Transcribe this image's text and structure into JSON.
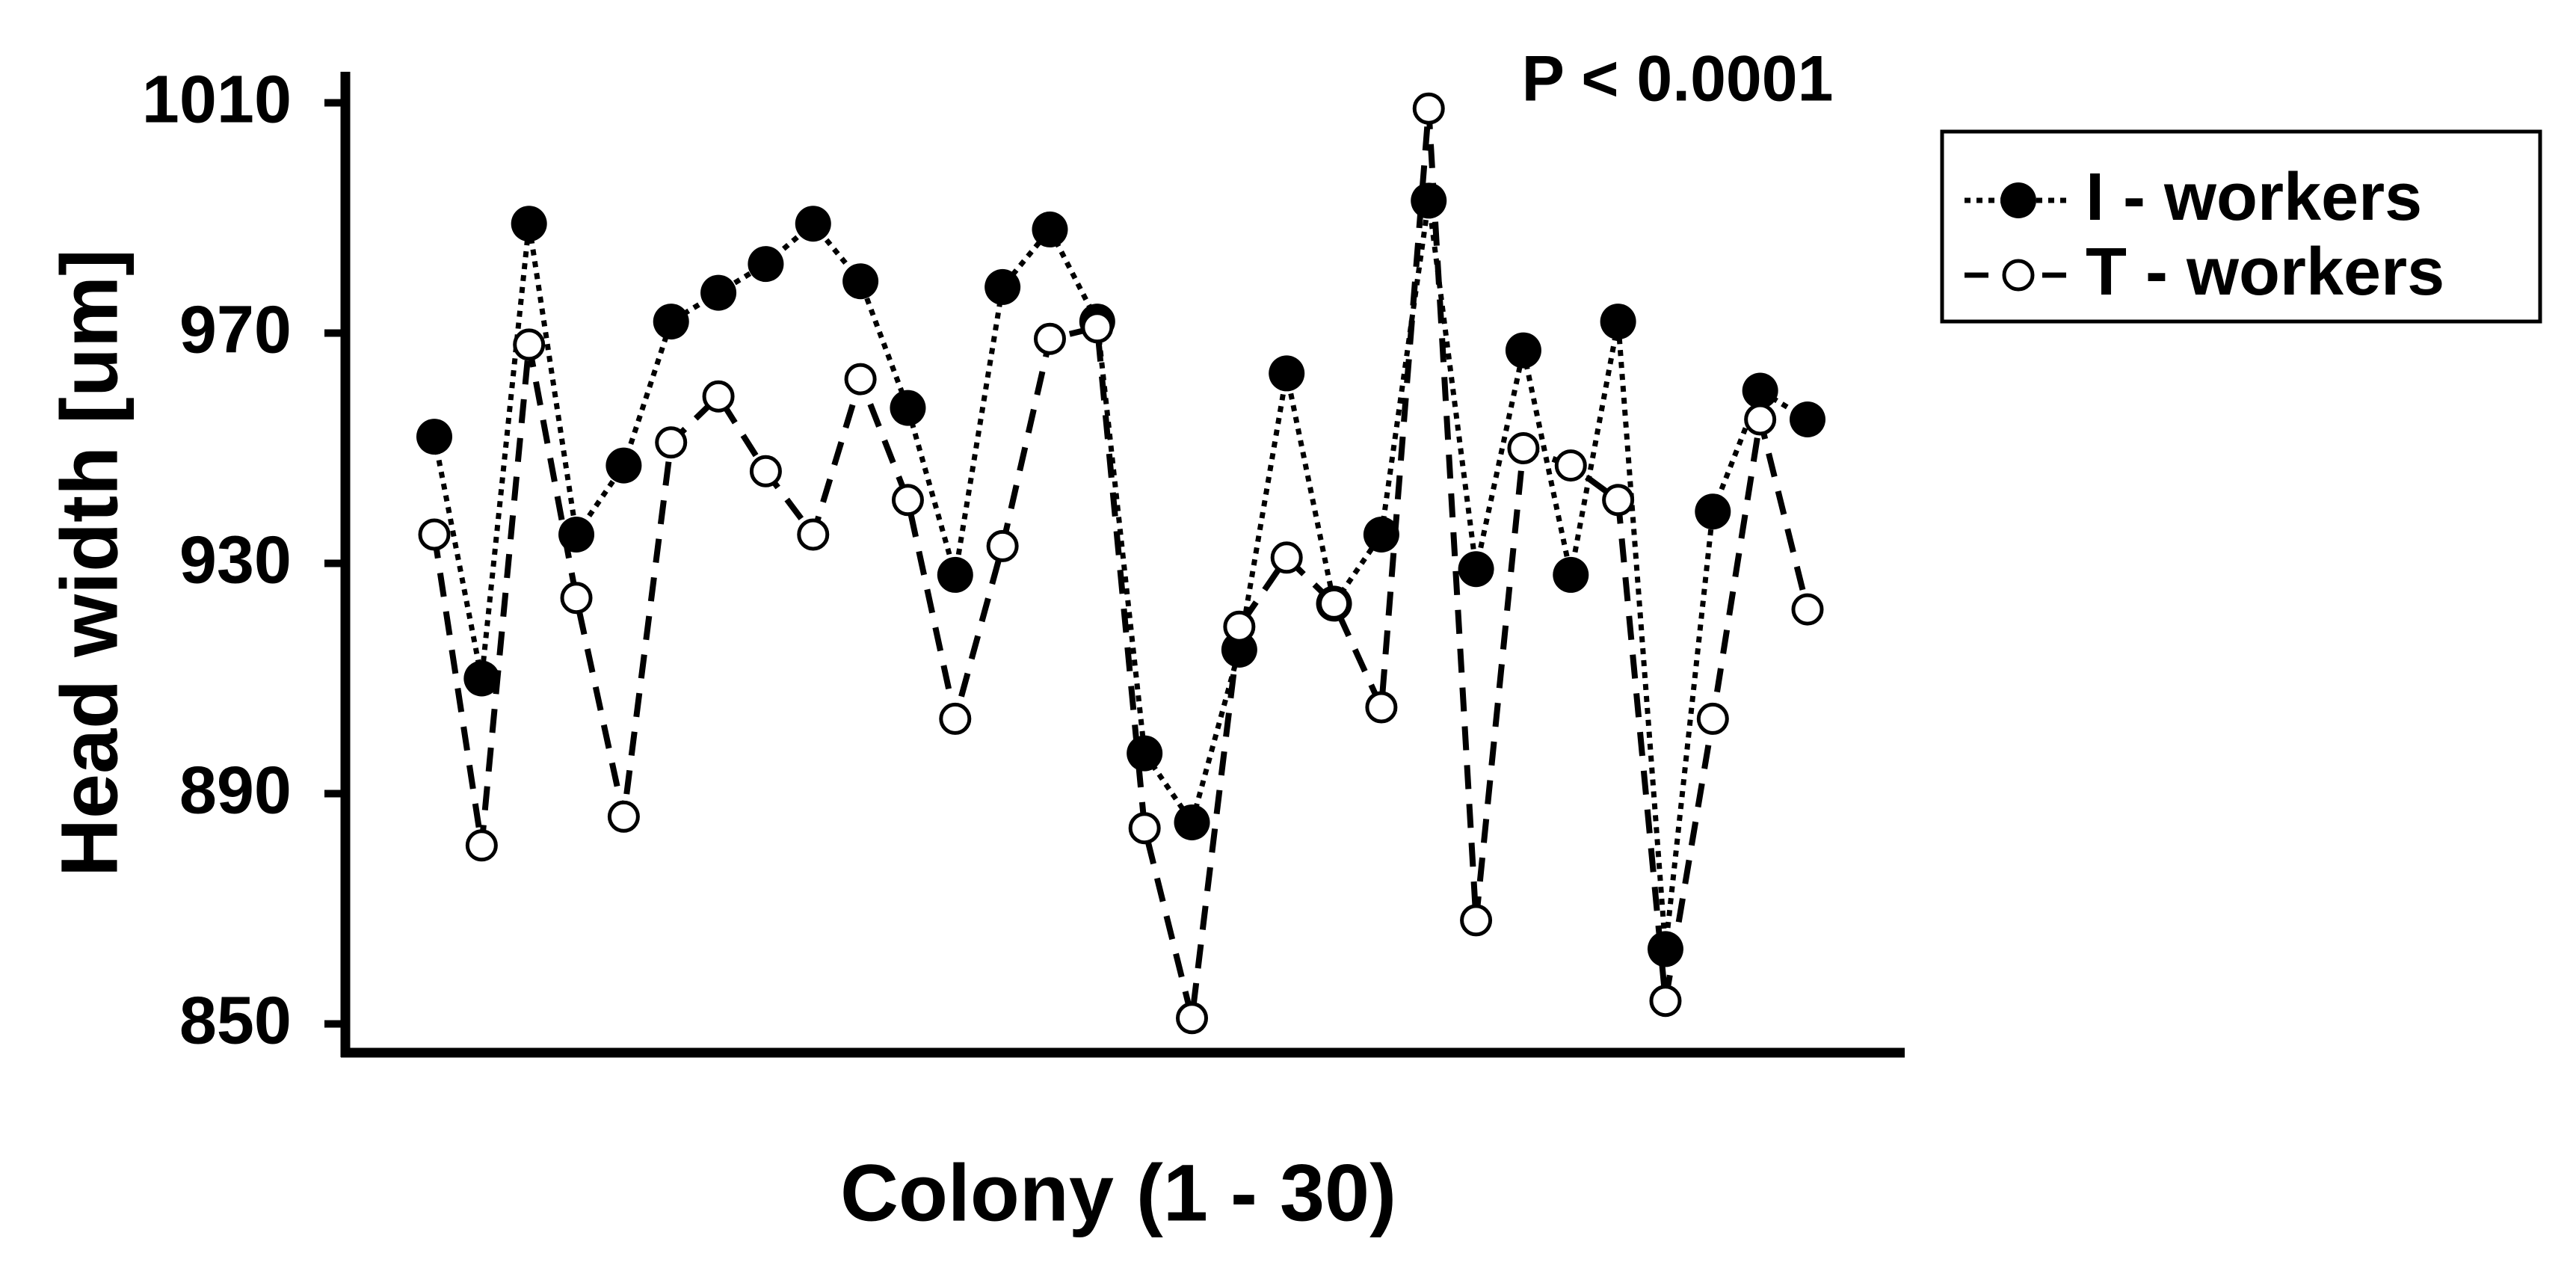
{
  "chart_data": {
    "type": "line",
    "annotation": "P < 0.0001",
    "x_label": "Colony (1 - 30)",
    "y_label": "Head width [um]",
    "categories": [
      null,
      null,
      null,
      null,
      null,
      null,
      null,
      null,
      null,
      null,
      null,
      null,
      null,
      null,
      null,
      null,
      null,
      null,
      null,
      null,
      null,
      null,
      null,
      null,
      null,
      null,
      null,
      null,
      null,
      null
    ],
    "series": [
      {
        "name": "I - workers",
        "color": "#000000",
        "marker": "filled",
        "line": "dotted",
        "values": [
          952,
          910,
          989,
          935,
          947,
          972,
          977,
          982,
          989,
          979,
          957,
          928,
          978,
          988,
          972,
          897,
          885,
          915,
          963,
          923,
          935,
          993,
          929,
          967,
          928,
          972,
          863,
          939,
          960,
          955
        ]
      },
      {
        "name": "T - workers",
        "color": "#000000",
        "marker": "open",
        "line": "dashed",
        "values": [
          935,
          881,
          968,
          924,
          886,
          951,
          959,
          946,
          935,
          962,
          941,
          903,
          933,
          969,
          971,
          884,
          851,
          919,
          931,
          923,
          905,
          1009,
          868,
          950,
          947,
          941,
          854,
          903,
          955,
          922
        ]
      }
    ],
    "ylim": [
      845,
      1015
    ],
    "yticks": [
      850,
      890,
      930,
      970,
      1010
    ],
    "legend": "upper right outside"
  }
}
